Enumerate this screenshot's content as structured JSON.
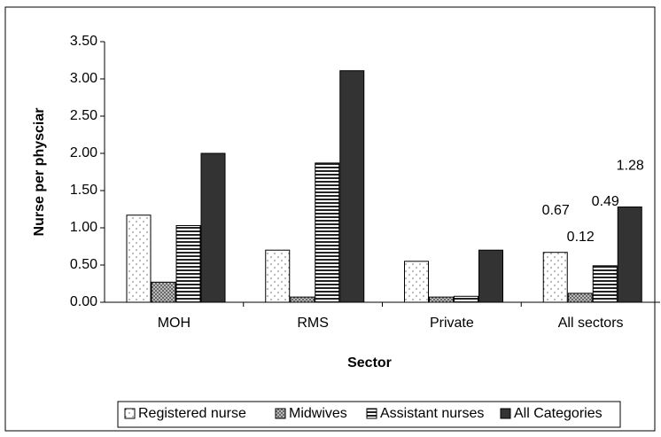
{
  "chart_data": {
    "type": "bar",
    "x_label": "Sector",
    "y_label": "Nurse per physciar",
    "categories": [
      "MOH",
      "RMS",
      "Private",
      "All sectors"
    ],
    "series": [
      {
        "name": "Registered nurse",
        "color": "#ffffff",
        "values": [
          1.17,
          0.7,
          0.55,
          0.67
        ]
      },
      {
        "name": "Midwives",
        "color": "#a0a0a0",
        "values": [
          0.27,
          0.07,
          0.07,
          0.12
        ]
      },
      {
        "name": "Assistant nurses",
        "color": "#ffffff",
        "values": [
          1.03,
          1.87,
          0.08,
          0.49
        ]
      },
      {
        "name": "All Categories",
        "color": "#333333",
        "values": [
          2.0,
          3.11,
          0.7,
          1.28
        ]
      }
    ],
    "ylim": [
      0,
      3.5
    ],
    "yticks": [
      {
        "value": 0,
        "label": "0.00"
      },
      {
        "value": 0.5,
        "label": "0.50"
      },
      {
        "value": 1,
        "label": "1.00"
      },
      {
        "value": 1.5,
        "label": "1.50"
      },
      {
        "value": 2,
        "label": "2.00"
      },
      {
        "value": 2.5,
        "label": "2.50"
      },
      {
        "value": 3,
        "label": "3.00"
      },
      {
        "value": 3.5,
        "label": "3.50"
      }
    ],
    "legend": "bottom"
  }
}
